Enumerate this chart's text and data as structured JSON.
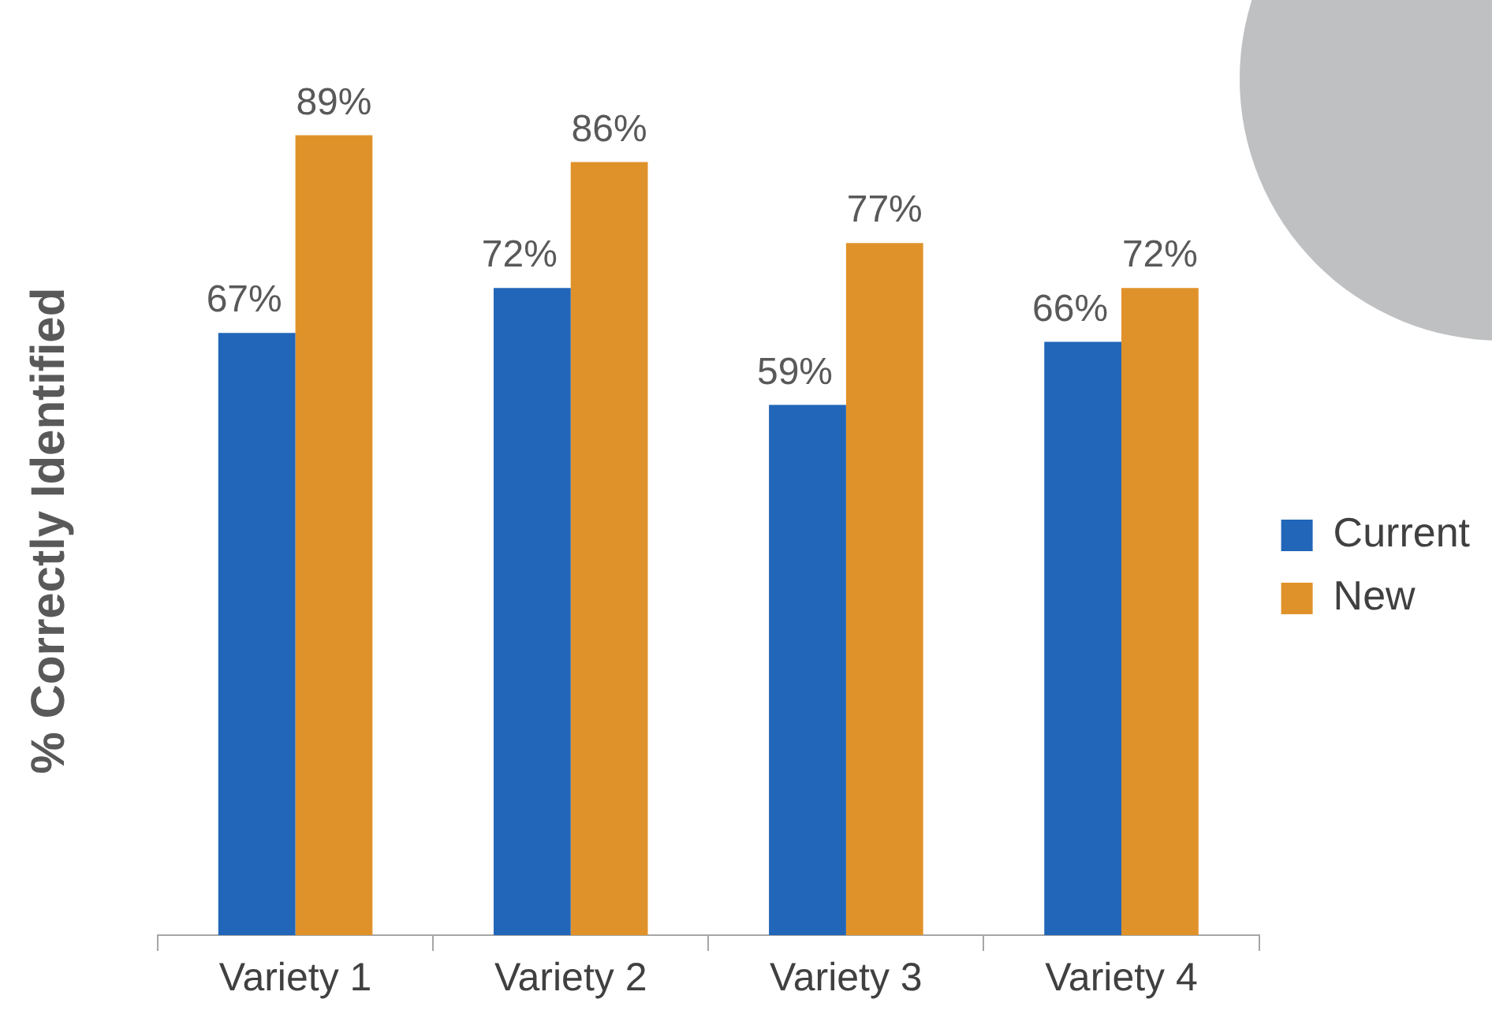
{
  "chart_data": {
    "type": "bar",
    "ylabel": "% Correctly Identified",
    "categories": [
      "Variety 1",
      "Variety 2",
      "Variety 3",
      "Variety 4"
    ],
    "legend": "right",
    "grid": false,
    "series": [
      {
        "name": "Current",
        "color": "#2166b8",
        "values": [
          67,
          72,
          59,
          66
        ],
        "value_labels": [
          "67%",
          "72%",
          "59%",
          "66%"
        ]
      },
      {
        "name": "New",
        "color": "#e0922a",
        "values": [
          89,
          86,
          77,
          72
        ],
        "value_labels": [
          "89%",
          "86%",
          "77%",
          "72%"
        ]
      }
    ]
  }
}
